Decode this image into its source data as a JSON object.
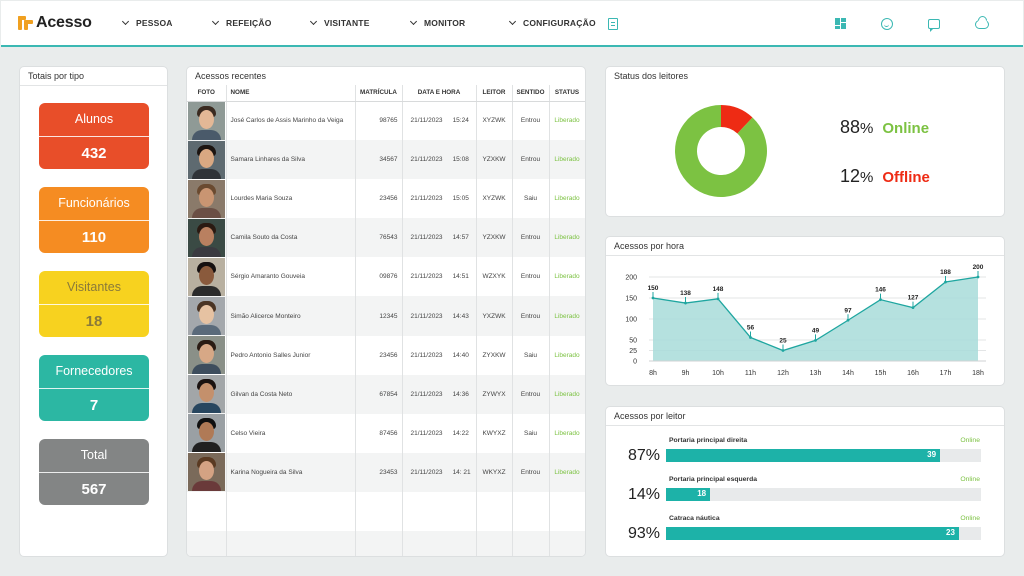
{
  "app": {
    "name": "Acesso"
  },
  "nav": [
    {
      "label": "PESSOA"
    },
    {
      "label": "REFEIÇÃO"
    },
    {
      "label": "VISITANTE"
    },
    {
      "label": "MONITOR"
    },
    {
      "label": "CONFIGURAÇÃO"
    }
  ],
  "top_icons": [
    "document-icon",
    "dashboard-grid-icon",
    "smile-icon",
    "chat-icon",
    "cloud-icon"
  ],
  "tipos": {
    "title": "Totais por tipo",
    "cards": [
      {
        "label": "Alunos",
        "value": "432",
        "color": "#e84e29",
        "text_color": "#ffffff"
      },
      {
        "label": "Funcionários",
        "value": "110",
        "color": "#f58c22",
        "text_color": "#ffffff"
      },
      {
        "label": "Visitantes",
        "value": "18",
        "color": "#f7d21f",
        "text_color": "#8a7a3a"
      },
      {
        "label": "Fornecedores",
        "value": "7",
        "color": "#2cb7a3",
        "text_color": "#ffffff"
      },
      {
        "label": "Total",
        "value": "567",
        "color": "#838585",
        "text_color": "#ffffff"
      }
    ]
  },
  "acessos": {
    "title": "Acessos recentes",
    "columns": [
      "FOTO",
      "NOME",
      "MATRÍCULA",
      "DATA E HORA",
      "LEITOR",
      "SENTIDO",
      "STATUS"
    ],
    "rows": [
      {
        "nome": "José Carlos de Assis Marinho da Veiga",
        "matricula": "98765",
        "data": "21/11/2023",
        "hora": "15:24",
        "leitor": "XYZWK",
        "sentido": "Entrou",
        "status": "Liberado"
      },
      {
        "nome": "Samara Linhares da Silva",
        "matricula": "34567",
        "data": "21/11/2023",
        "hora": "15:08",
        "leitor": "YZXKW",
        "sentido": "Entrou",
        "status": "Liberado"
      },
      {
        "nome": "Lourdes Maria Souza",
        "matricula": "23456",
        "data": "21/11/2023",
        "hora": "15:05",
        "leitor": "XYZWK",
        "sentido": "Saiu",
        "status": "Liberado"
      },
      {
        "nome": "Camila Souto da Costa",
        "matricula": "76543",
        "data": "21/11/2023",
        "hora": "14:57",
        "leitor": "YZXKW",
        "sentido": "Entrou",
        "status": "Liberado"
      },
      {
        "nome": "Sérgio Amaranto Gouveia",
        "matricula": "09876",
        "data": "21/11/2023",
        "hora": "14:51",
        "leitor": "WZXYK",
        "sentido": "Entrou",
        "status": "Liberado"
      },
      {
        "nome": "Simão Alicerce Monteiro",
        "matricula": "12345",
        "data": "21/11/2023",
        "hora": "14:43",
        "leitor": "YXZWK",
        "sentido": "Entrou",
        "status": "Liberado"
      },
      {
        "nome": "Pedro Antonio Salles Junior",
        "matricula": "23456",
        "data": "21/11/2023",
        "hora": "14:40",
        "leitor": "ZYXKW",
        "sentido": "Saiu",
        "status": "Liberado"
      },
      {
        "nome": "Gilvan da Costa Neto",
        "matricula": "67854",
        "data": "21/11/2023",
        "hora": "14:36",
        "leitor": "ZYWYX",
        "sentido": "Entrou",
        "status": "Liberado"
      },
      {
        "nome": "Celso Vieira",
        "matricula": "87456",
        "data": "21/11/2023",
        "hora": "14:22",
        "leitor": "KWYXZ",
        "sentido": "Saiu",
        "status": "Liberado"
      },
      {
        "nome": "Karina Nogueira da Silva",
        "matricula": "23453",
        "data": "21/11/2023",
        "hora": "14: 21",
        "leitor": "WKYXZ",
        "sentido": "Entrou",
        "status": "Liberado"
      }
    ]
  },
  "status_leitores": {
    "title": "Status dos leitores",
    "online": {
      "pct": "88",
      "label": "Online",
      "color": "#7cc242"
    },
    "offline": {
      "pct": "12",
      "label": "Offline",
      "color": "#ee2b14"
    }
  },
  "acessos_hora": {
    "title": "Acessos por hora"
  },
  "chart_data": {
    "type": "area",
    "title": "Acessos por hora",
    "categories": [
      "8h",
      "9h",
      "10h",
      "11h",
      "12h",
      "13h",
      "14h",
      "15h",
      "16h",
      "17h",
      "18h"
    ],
    "values": [
      150,
      138,
      148,
      56,
      25,
      49,
      97,
      146,
      127,
      188,
      200
    ],
    "yticks": [
      0,
      25,
      50,
      100,
      150,
      200
    ],
    "ylim": [
      0,
      200
    ],
    "grid": true,
    "fill_color": "#a8dcd9",
    "line_color": "#1fa6a0"
  },
  "acessos_leitor": {
    "title": "Acessos por leitor",
    "items": [
      {
        "name": "Portaria principal direita",
        "status": "Online",
        "pct": "87",
        "value": "39",
        "fraction": 0.87
      },
      {
        "name": "Portaria principal esquerda",
        "status": "Online",
        "pct": "14",
        "value": "18",
        "fraction": 0.14
      },
      {
        "name": "Catraca náutica",
        "status": "Online",
        "pct": "93",
        "value": "23",
        "fraction": 0.93
      }
    ]
  }
}
